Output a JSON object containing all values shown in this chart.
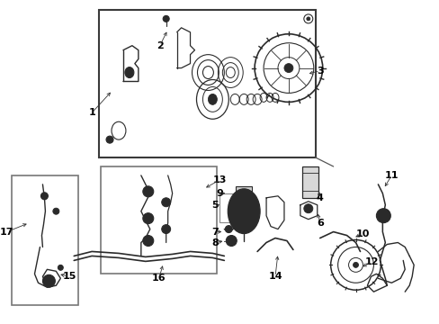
{
  "bg_color": "#ffffff",
  "fig_width": 4.89,
  "fig_height": 3.6,
  "dpi": 100,
  "image_data": "from_target"
}
